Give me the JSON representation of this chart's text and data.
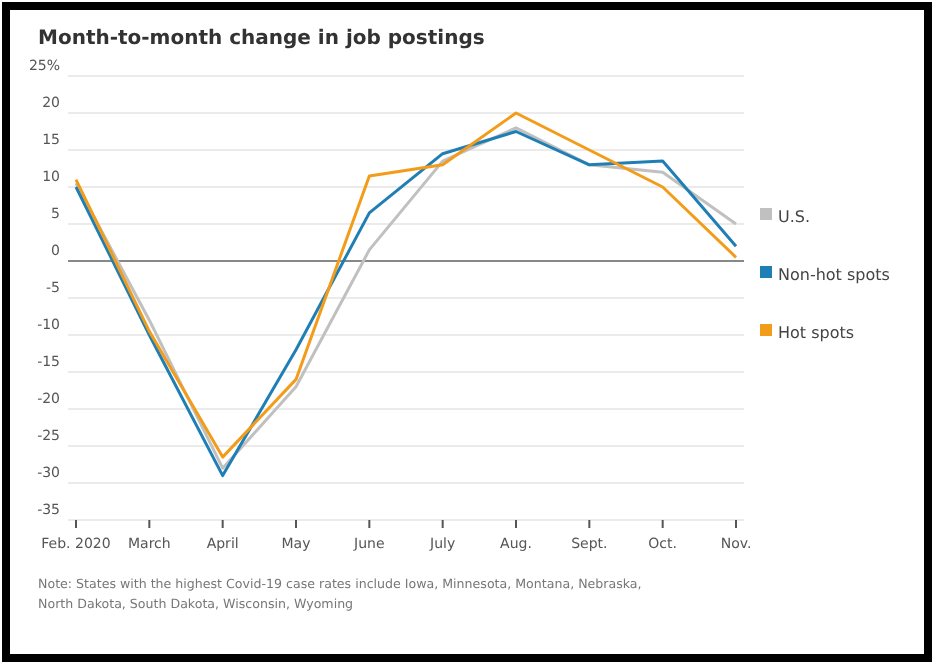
{
  "chart_data": {
    "type": "line",
    "title": "Month-to-month change in job postings",
    "categories": [
      "Feb. 2020",
      "March",
      "April",
      "May",
      "June",
      "July",
      "Aug.",
      "Sept.",
      "Oct.",
      "Nov."
    ],
    "series": [
      {
        "name": "U.S.",
        "color": "#c0c0c0",
        "values": [
          10.5,
          -8,
          -28,
          -17,
          1.5,
          13.5,
          18,
          13,
          12,
          5
        ]
      },
      {
        "name": "Non-hot spots",
        "color": "#1f7fb5",
        "values": [
          10,
          -10,
          -29,
          -12,
          6.5,
          14.5,
          17.5,
          13,
          13.5,
          2
        ]
      },
      {
        "name": "Hot spots",
        "color": "#f29c1a",
        "values": [
          11,
          -9.5,
          -26.5,
          -16,
          11.5,
          13,
          20,
          15,
          10,
          0.5
        ]
      }
    ],
    "ylim": [
      -35,
      25
    ],
    "yticks": [
      {
        "value": 25,
        "label": "25%"
      },
      20,
      15,
      10,
      5,
      0,
      -5,
      -10,
      -15,
      -20,
      -25,
      -30,
      -35
    ],
    "grid": "y",
    "legend": "right",
    "marker": "none",
    "line_style": "solid",
    "annotations": [
      "Note: States with the highest Covid-19 case rates include Iowa, Minnesota, Montana, Nebraska, North Dakota, South Dakota, Wisconsin, Wyoming"
    ]
  }
}
